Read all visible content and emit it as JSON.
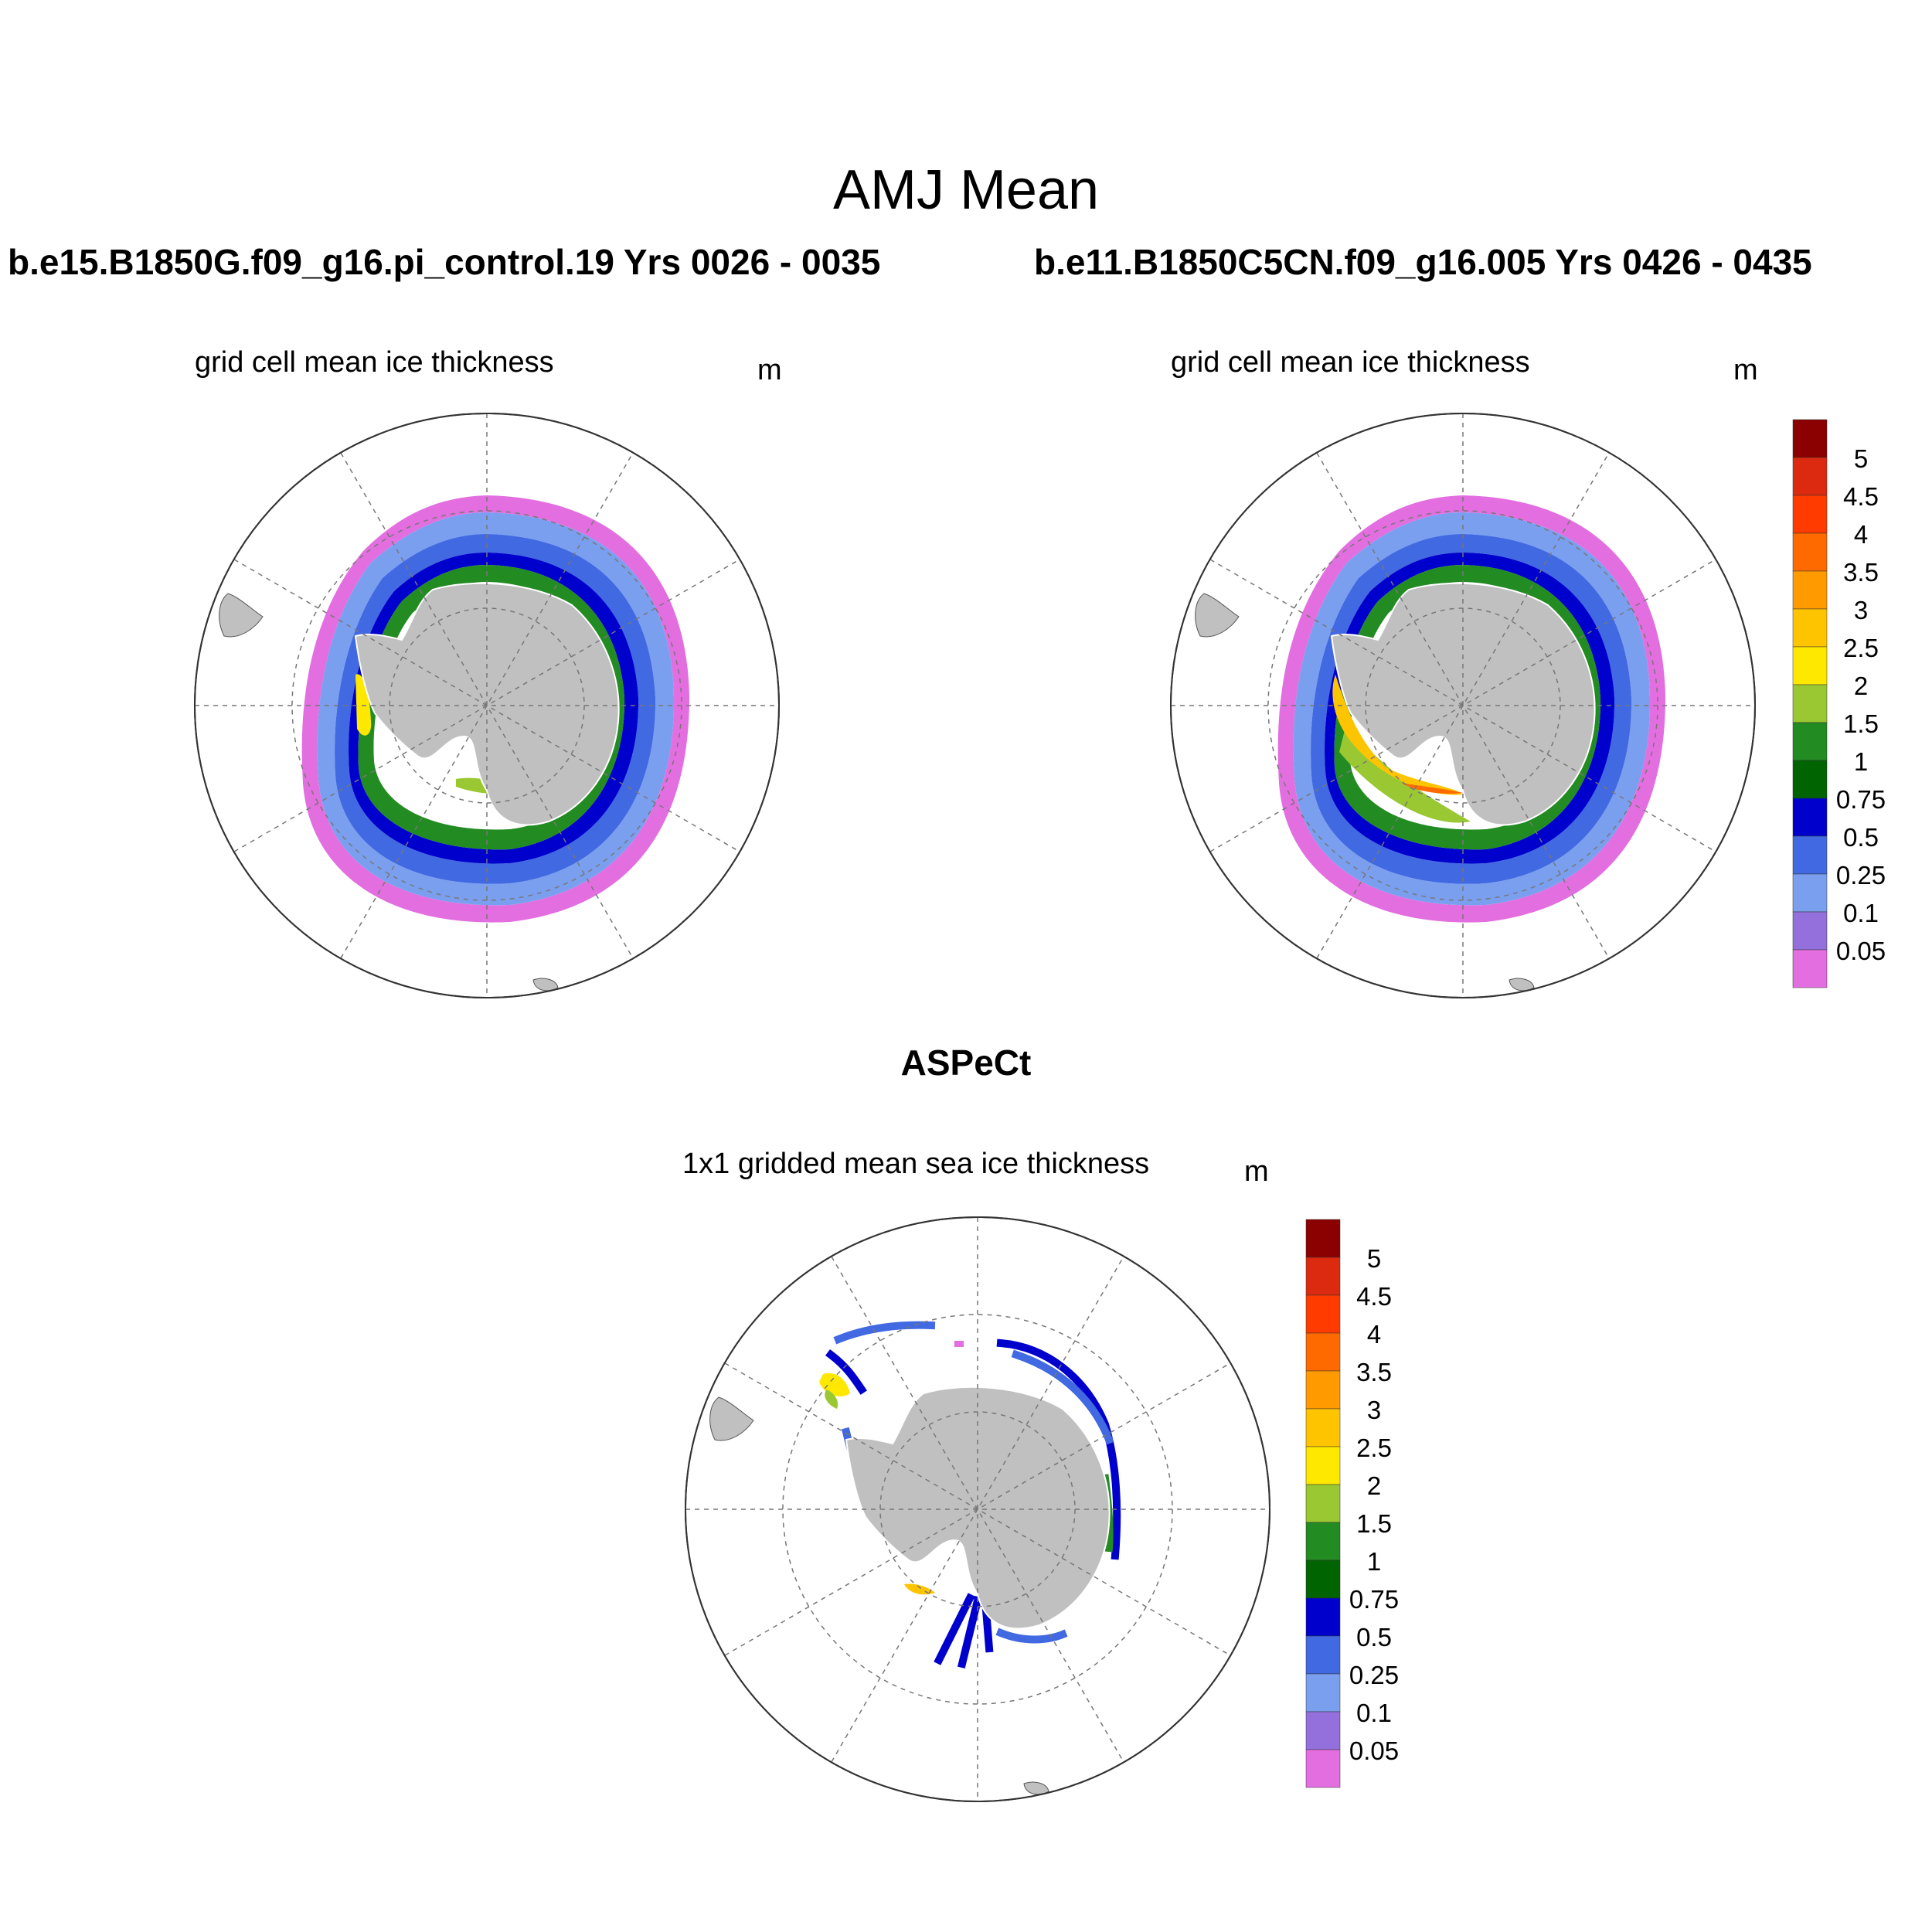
{
  "figure": {
    "title": "AMJ Mean"
  },
  "panels": [
    {
      "case": "b.e15.B1850G.f09_g16.pi_control.19  Yrs 0026 - 0035",
      "variable": "grid cell mean ice thickness",
      "units": "m"
    },
    {
      "case": "b.e11.B1850C5CN.f09_g16.005  Yrs 0426 - 0435",
      "variable": "grid cell mean ice thickness",
      "units": "m"
    },
    {
      "case": "ASPeCt",
      "variable": "1x1 gridded mean sea ice thickness",
      "units": "m"
    }
  ],
  "colorbar": {
    "labels": [
      "5",
      "4.5",
      "4",
      "3.5",
      "3",
      "2.5",
      "2",
      "1.5",
      "1",
      "0.75",
      "0.5",
      "0.25",
      "0.1",
      "0.05"
    ],
    "colors": [
      "#8b0000",
      "#dc2a10",
      "#ff3b00",
      "#ff6a00",
      "#ff9a00",
      "#ffc400",
      "#ffe800",
      "#9ac832",
      "#228b22",
      "#006400",
      "#0000cd",
      "#4169e1",
      "#7b9fef",
      "#9370db",
      "#e36ee0"
    ]
  },
  "chart_data": {
    "type": "heatmap",
    "projection": "south polar stereographic",
    "field": "sea ice thickness",
    "units": "m",
    "contour_levels": [
      0.05,
      0.1,
      0.25,
      0.5,
      0.75,
      1,
      1.5,
      2,
      2.5,
      3,
      3.5,
      4,
      4.5,
      5
    ],
    "land_color": "#c0c0c0",
    "grid": true
  }
}
